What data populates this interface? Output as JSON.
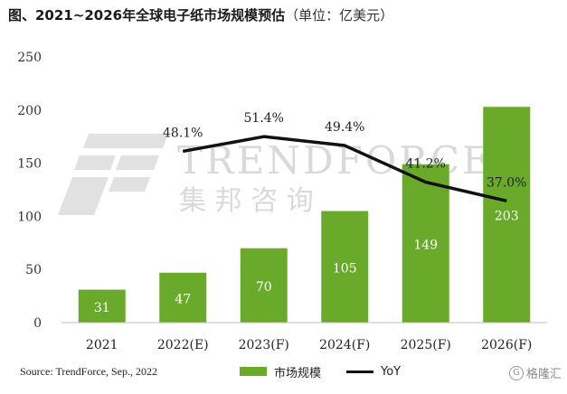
{
  "title": {
    "main": "图、2021~2026年全球电子纸市场规模预估",
    "unit": "（单位：亿美元）"
  },
  "watermark": {
    "brand": "TRENDFORCE",
    "brand_cn": "集 邦 咨 询"
  },
  "source": "Source: TrendForce, Sep., 2022",
  "badge": {
    "label": "格隆汇",
    "icon": "g-circle-icon"
  },
  "chart_data": {
    "type": "bar",
    "categories": [
      "2021",
      "2022(E)",
      "2023(F)",
      "2024(F)",
      "2025(F)",
      "2026(F)"
    ],
    "series": [
      {
        "name": "市场规模",
        "type": "bar",
        "values": [
          31,
          47,
          70,
          105,
          149,
          203
        ],
        "color": "#6aaa2a"
      },
      {
        "name": "YoY",
        "type": "line",
        "values": [
          null,
          48.1,
          51.4,
          49.4,
          41.2,
          37.0
        ],
        "labels": [
          "",
          "48.1%",
          "51.4%",
          "49.4%",
          "41.2%",
          "37.0%"
        ],
        "color": "#111111"
      }
    ],
    "ylim": [
      0,
      250
    ],
    "yticks": [
      0,
      50,
      100,
      150,
      200,
      250
    ],
    "xlabel": "",
    "ylabel": "",
    "grid": false,
    "legend": "bottom"
  }
}
